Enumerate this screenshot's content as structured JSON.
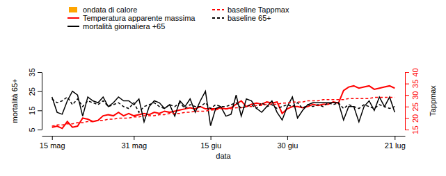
{
  "chart_data": {
    "type": "line",
    "x_label": "data",
    "y_label": "mortalità 65+",
    "y2_label": "Tappmax",
    "legend": "top",
    "x": [
      0,
      1,
      2,
      3,
      4,
      5,
      6,
      7,
      8,
      9,
      10,
      11,
      12,
      13,
      14,
      15,
      16,
      17,
      18,
      19,
      20,
      21,
      22,
      23,
      24,
      25,
      26,
      27,
      28,
      29,
      30,
      31,
      32,
      33,
      34,
      35,
      36,
      37,
      38,
      39,
      40,
      41,
      42,
      43,
      44,
      45,
      46,
      47,
      48,
      49,
      50,
      51,
      52,
      53,
      54,
      55,
      56,
      57,
      58,
      59,
      60,
      61,
      62,
      63,
      64,
      65,
      66,
      67
    ],
    "xlim": [
      -2,
      69
    ],
    "xticks": [
      {
        "value": 0,
        "label": "15 mag"
      },
      {
        "value": 16,
        "label": "31 mag"
      },
      {
        "value": 31,
        "label": "15 giu"
      },
      {
        "value": 46,
        "label": "30 giu"
      },
      {
        "value": 67,
        "label": "21 lug"
      }
    ],
    "ylim": [
      5,
      35
    ],
    "yticks": [
      5,
      15,
      25,
      35
    ],
    "y2lim": [
      15,
      40
    ],
    "y2ticks": [
      15,
      20,
      25,
      30,
      35,
      40
    ],
    "series": [
      {
        "name": "ondata di calore",
        "type": "bar",
        "color": "#ffa500",
        "axis": "y",
        "values": [
          null,
          null,
          null,
          null,
          null,
          null,
          null,
          null,
          null,
          null,
          null,
          null,
          null,
          null,
          null,
          null,
          null,
          null,
          null,
          null,
          null,
          null,
          null,
          null,
          null,
          null,
          null,
          null,
          null,
          null,
          null,
          null,
          null,
          null,
          null,
          null,
          null,
          null,
          null,
          null,
          null,
          null,
          null,
          null,
          null,
          null,
          null,
          null,
          null,
          null,
          null,
          null,
          null,
          null,
          null,
          null,
          null,
          null,
          null,
          null,
          null,
          null,
          null,
          null,
          null,
          null,
          null,
          null
        ]
      },
      {
        "name": "Temperatura apparente massima",
        "type": "line",
        "color": "#ff0000",
        "line_style": "solid",
        "axis": "y2",
        "values": [
          16,
          16.5,
          15.5,
          18.5,
          16,
          16.5,
          20,
          19.5,
          18.5,
          19,
          21,
          21.5,
          21,
          22.5,
          21,
          22,
          21,
          21.5,
          22,
          21.5,
          22.5,
          22,
          23,
          22.5,
          23,
          23.5,
          24,
          24.5,
          24,
          25,
          24,
          24,
          24,
          24.5,
          24,
          24.5,
          26,
          27.5,
          25,
          26,
          26.5,
          26,
          27,
          26.5,
          27,
          22,
          24,
          25,
          25,
          24.5,
          25,
          26,
          25.5,
          26,
          26,
          27,
          26.5,
          32,
          33.5,
          34,
          33,
          33.5,
          34,
          32.5,
          33,
          33.5,
          34,
          33
        ]
      },
      {
        "name": "mortalità giornaliera +65",
        "type": "line",
        "color": "#000000",
        "line_style": "solid",
        "axis": "y",
        "values": [
          22,
          14,
          13,
          20,
          25,
          23,
          12,
          22,
          20,
          19,
          22,
          17,
          19,
          22,
          20,
          20,
          18,
          21,
          9,
          17,
          20,
          19,
          16,
          18,
          12,
          20,
          17,
          21,
          14,
          20,
          25,
          7,
          16,
          17,
          12,
          13,
          23,
          12,
          21,
          20,
          16,
          14,
          17,
          20,
          14,
          10,
          17,
          22,
          11,
          15,
          18,
          19,
          19,
          19,
          19,
          19,
          19,
          10,
          17,
          17,
          9,
          17,
          20,
          15,
          22,
          17,
          22,
          14
        ]
      },
      {
        "name": "baseline Tappmax",
        "type": "line",
        "color": "#ff0000",
        "line_style": "dashed",
        "axis": "y2",
        "values": [
          16.5,
          17,
          17,
          17.5,
          17.5,
          18,
          18,
          18.5,
          18.5,
          19,
          19,
          19.5,
          19.5,
          20,
          20,
          20,
          20.5,
          20.5,
          21,
          21,
          21,
          21.5,
          21.5,
          22,
          22,
          22,
          22.5,
          22.5,
          23,
          23,
          23,
          23.5,
          23.5,
          24,
          24,
          24,
          24.5,
          24.5,
          25,
          25,
          25.5,
          25.5,
          26,
          26,
          26,
          26.5,
          26.5,
          27,
          27,
          27,
          27.5,
          27.5,
          27.5,
          28,
          28,
          28,
          28,
          28,
          28.5,
          28.5,
          28.5,
          28.5,
          28.5,
          29,
          29,
          29,
          29,
          29
        ]
      },
      {
        "name": "baseline 65+",
        "type": "line",
        "color": "#000000",
        "line_style": "dashed",
        "axis": "y",
        "values": [
          21,
          19,
          20,
          22,
          18,
          21,
          17,
          20,
          19,
          18,
          20,
          17,
          18,
          19,
          17,
          16,
          19,
          14,
          17,
          18,
          19,
          17,
          16,
          18,
          17,
          19,
          16,
          18,
          17,
          17,
          19,
          16,
          18,
          17,
          17,
          18,
          19,
          16,
          17,
          18,
          16,
          19,
          17,
          18,
          16,
          17,
          18,
          17,
          19,
          16,
          18,
          17,
          18,
          17,
          19,
          18,
          19,
          16,
          18,
          17,
          16,
          18,
          17,
          16,
          18,
          17,
          16,
          17
        ]
      }
    ]
  }
}
